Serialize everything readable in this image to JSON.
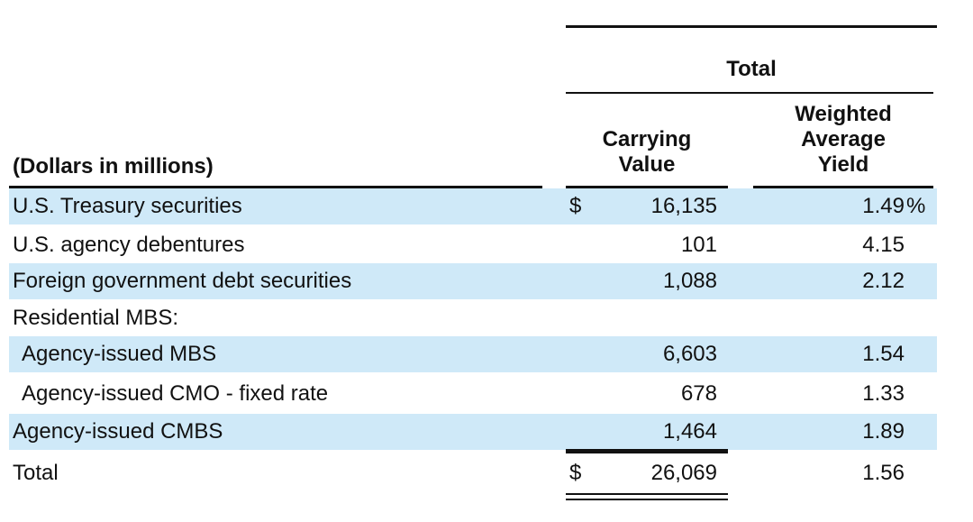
{
  "table": {
    "group_title": "Total",
    "label_header": "(Dollars in millions)",
    "carrying_header": [
      "Carrying",
      "Value"
    ],
    "yield_header": [
      "Weighted",
      "Average",
      "Yield"
    ],
    "rows": [
      {
        "label": "U.S. Treasury securities",
        "currency": "$",
        "value": "16,135",
        "yield": "1.49",
        "unit": "%"
      },
      {
        "label": "U.S. agency debentures",
        "currency": "",
        "value": "101",
        "yield": "4.15",
        "unit": ""
      },
      {
        "label": "Foreign government debt securities",
        "currency": "",
        "value": "1,088",
        "yield": "2.12",
        "unit": ""
      },
      {
        "label": "Residential MBS:",
        "currency": "",
        "value": "",
        "yield": "",
        "unit": ""
      },
      {
        "label": "Agency-issued MBS",
        "currency": "",
        "value": "6,603",
        "yield": "1.54",
        "unit": ""
      },
      {
        "label": "Agency-issued CMO - fixed rate",
        "currency": "",
        "value": "678",
        "yield": "1.33",
        "unit": ""
      },
      {
        "label": "Agency-issued CMBS",
        "currency": "",
        "value": "1,464",
        "yield": "1.89",
        "unit": ""
      },
      {
        "label": "Total",
        "currency": "$",
        "value": "26,069",
        "yield": "1.56",
        "unit": ""
      }
    ]
  },
  "colors": {
    "row_shading": "#cfe9f8",
    "rule": "#111111"
  }
}
